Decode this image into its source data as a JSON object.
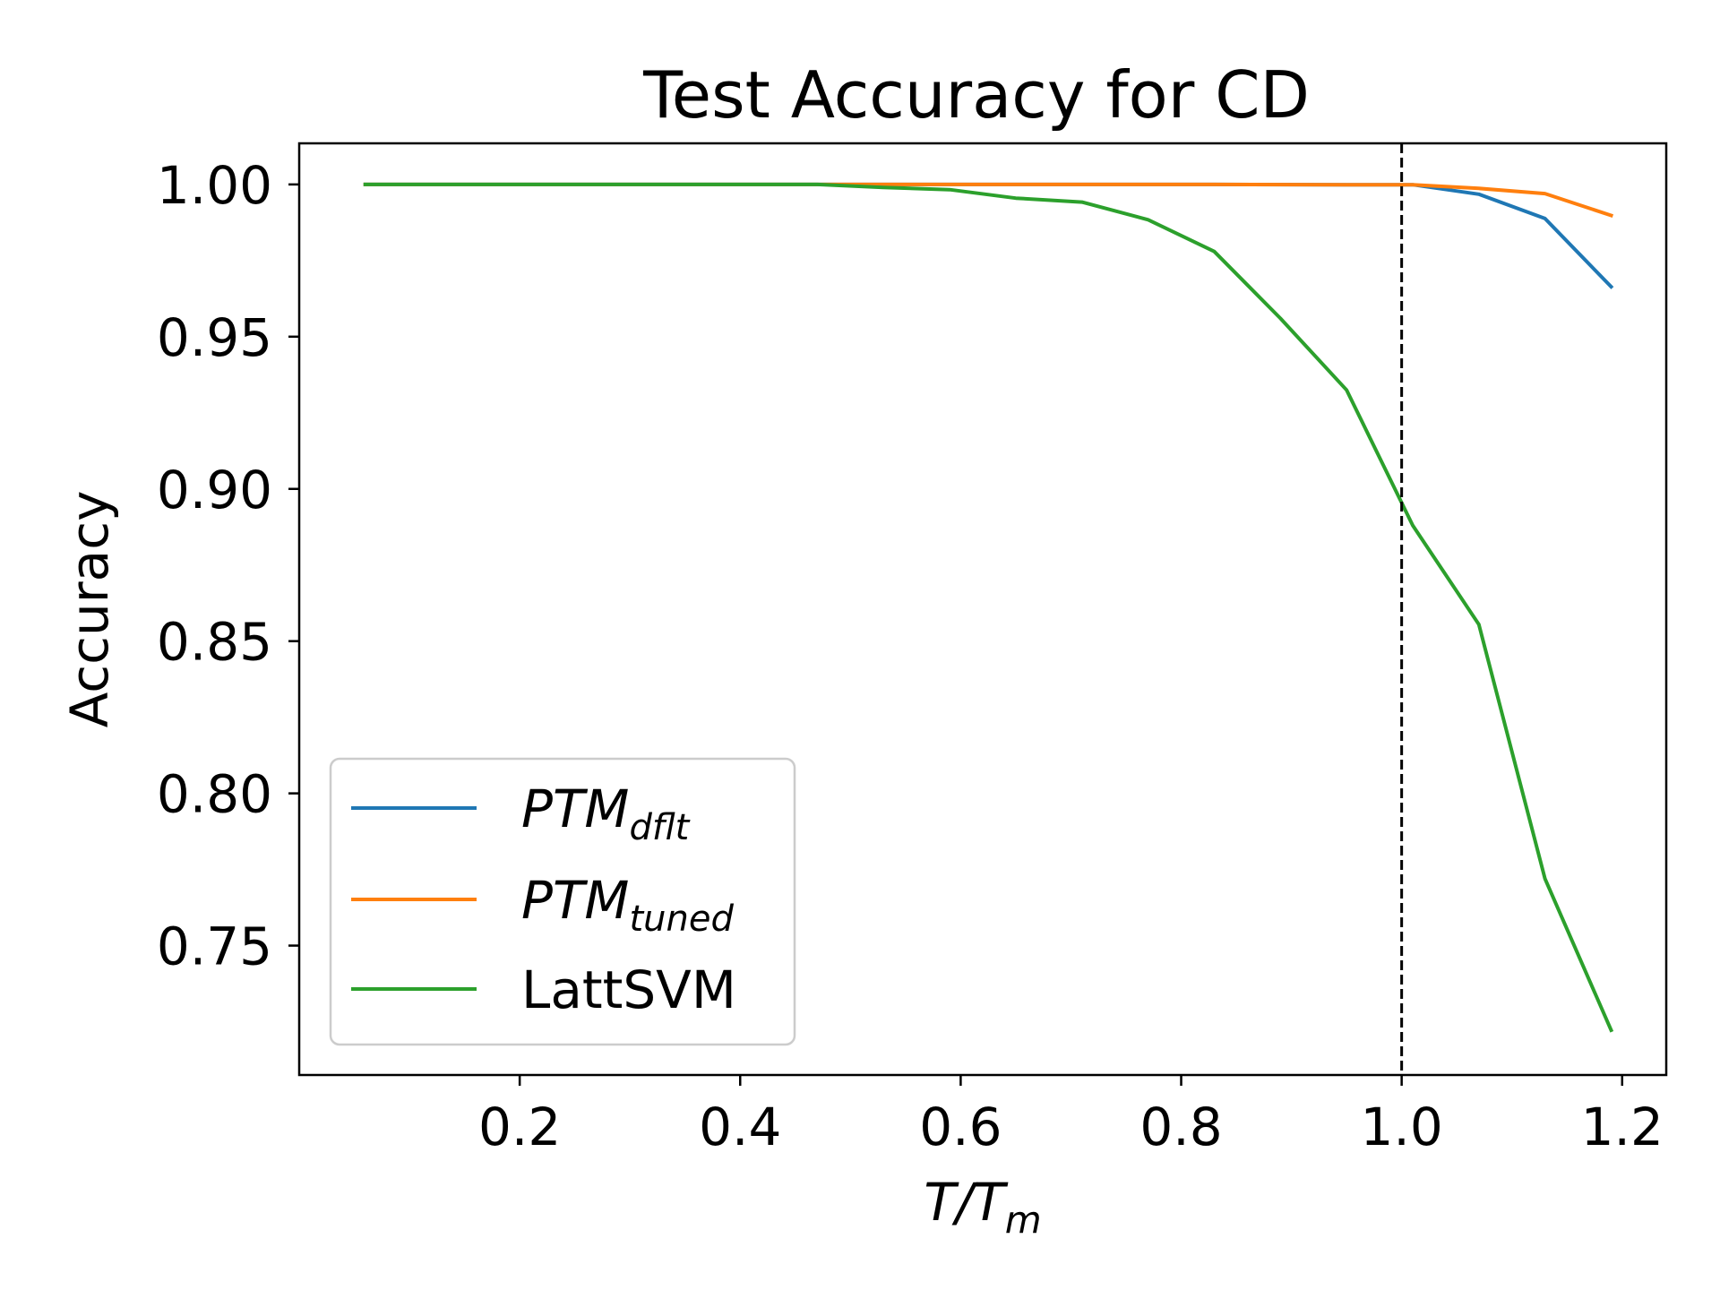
{
  "chart_data": {
    "type": "line",
    "title": "Test Accuracy for CD",
    "xlabel": {
      "main": "T/T",
      "sub": "m"
    },
    "ylabel": "Accuracy",
    "xlim": [
      0.0,
      1.24
    ],
    "ylim": [
      0.7075,
      1.0135
    ],
    "xticks": [
      0.2,
      0.4,
      0.6,
      0.8,
      1.0,
      1.2
    ],
    "xtick_labels": [
      "0.2",
      "0.4",
      "0.6",
      "0.8",
      "1.0",
      "1.2"
    ],
    "yticks": [
      0.75,
      0.8,
      0.85,
      0.9,
      0.95,
      1.0
    ],
    "ytick_labels": [
      "0.75",
      "0.80",
      "0.85",
      "0.90",
      "0.95",
      "1.00"
    ],
    "vline": {
      "x": 1.0,
      "style": "dashed",
      "color": "#000000"
    },
    "legend_position": "lower-left",
    "grid": false,
    "series": [
      {
        "name": "PTM",
        "name_sub": "dflt",
        "color": "#1f77b4",
        "x": [
          0.06,
          0.47,
          0.59,
          0.71,
          0.83,
          0.95,
          1.01,
          1.07,
          1.13,
          1.19
        ],
        "y": [
          1.0,
          1.0,
          1.0,
          1.0,
          1.0,
          0.9999,
          0.9999,
          0.9968,
          0.9888,
          0.9664
        ]
      },
      {
        "name": "PTM",
        "name_sub": "tuned",
        "color": "#ff7f0e",
        "x": [
          0.06,
          0.47,
          0.59,
          0.71,
          0.83,
          0.95,
          1.01,
          1.07,
          1.13,
          1.19
        ],
        "y": [
          1.0,
          1.0,
          1.0,
          1.0,
          1.0,
          0.9999,
          0.9999,
          0.9987,
          0.997,
          0.9898
        ]
      },
      {
        "name": "LattSVM",
        "name_sub": "",
        "color": "#2ca02c",
        "x": [
          0.06,
          0.47,
          0.53,
          0.59,
          0.65,
          0.71,
          0.77,
          0.83,
          0.89,
          0.95,
          1.01,
          1.07,
          1.13,
          1.19
        ],
        "y": [
          1.0,
          1.0,
          0.999,
          0.9983,
          0.9955,
          0.9942,
          0.9884,
          0.978,
          0.956,
          0.9325,
          0.888,
          0.8555,
          0.772,
          0.7222
        ]
      }
    ]
  }
}
